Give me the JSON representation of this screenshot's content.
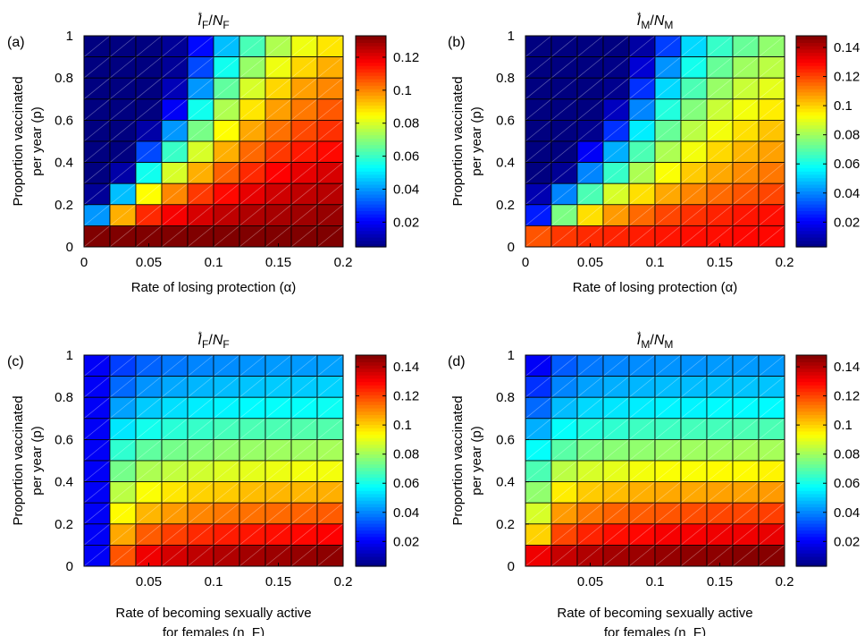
{
  "figure": {
    "panels": [
      {
        "id": "a",
        "letter": "(a)",
        "title_sym": "I",
        "title_sup": "*",
        "title_sub": "F",
        "title_den": "N",
        "title_den_sub": "F",
        "xlabel_lines": [
          "Rate of losing protection (α)"
        ],
        "ylabel_lines": [
          "Proportion vaccinated",
          "per year (p)"
        ],
        "xticks": [
          "0",
          "0.05",
          "0.1",
          "0.15",
          "0.2"
        ],
        "yticks": [
          "0",
          "0.2",
          "0.4",
          "0.6",
          "0.8",
          "1"
        ],
        "cticks": [
          "0.02",
          "0.04",
          "0.06",
          "0.08",
          "0.1",
          "0.12"
        ]
      },
      {
        "id": "b",
        "letter": "(b)",
        "title_sym": "I",
        "title_sup": "*",
        "title_sub": "M",
        "title_den": "N",
        "title_den_sub": "M",
        "xlabel_lines": [
          "Rate of losing protection (α)"
        ],
        "ylabel_lines": [
          "Proportion vaccinated",
          "per year (p)"
        ],
        "xticks": [
          "0",
          "0.05",
          "0.1",
          "0.15",
          "0.2"
        ],
        "yticks": [
          "0",
          "0.2",
          "0.4",
          "0.6",
          "0.8",
          "1"
        ],
        "cticks": [
          "0.02",
          "0.04",
          "0.06",
          "0.08",
          "0.1",
          "0.12",
          "0.14"
        ]
      },
      {
        "id": "c",
        "letter": "(c)",
        "title_sym": "I",
        "title_sup": "*",
        "title_sub": "F",
        "title_den": "N",
        "title_den_sub": "F",
        "xlabel_lines": [
          "Rate of becoming sexually active",
          "for females (η_F)"
        ],
        "ylabel_lines": [
          "Proportion vaccinated",
          "per year (p)"
        ],
        "xticks": [
          "0.05",
          "0.1",
          "0.15",
          "0.2"
        ],
        "yticks": [
          "0",
          "0.2",
          "0.4",
          "0.6",
          "0.8",
          "1"
        ],
        "cticks": [
          "0.02",
          "0.04",
          "0.06",
          "0.08",
          "0.1",
          "0.12",
          "0.14"
        ]
      },
      {
        "id": "d",
        "letter": "(d)",
        "title_sym": "I",
        "title_sup": "*",
        "title_sub": "M",
        "title_den": "N",
        "title_den_sub": "M",
        "xlabel_lines": [
          "Rate of becoming sexually active",
          "for females (η_F)"
        ],
        "ylabel_lines": [
          "Proportion vaccinated",
          "per year (p)"
        ],
        "xticks": [
          "0.05",
          "0.1",
          "0.15",
          "0.2"
        ],
        "yticks": [
          "0",
          "0.2",
          "0.4",
          "0.6",
          "0.8",
          "1"
        ],
        "cticks": [
          "0.02",
          "0.04",
          "0.06",
          "0.08",
          "0.1",
          "0.12",
          "0.14"
        ]
      }
    ]
  },
  "chart_data": [
    {
      "type": "heatmap",
      "title": "I*_F/N_F",
      "xlabel": "Rate of losing protection (α)",
      "ylabel": "Proportion vaccinated per year (p)",
      "x": [
        0,
        0.0222,
        0.0444,
        0.0667,
        0.0889,
        0.1111,
        0.1333,
        0.1556,
        0.1778,
        0.2
      ],
      "y": [
        0,
        0.1111,
        0.2222,
        0.3333,
        0.4444,
        0.5556,
        0.6667,
        0.7778,
        0.8889,
        1
      ],
      "xlim": [
        0,
        0.2
      ],
      "ylim": [
        0,
        1
      ],
      "clim": [
        0.005,
        0.133
      ],
      "colormap": "jet",
      "colorbar_ticks": [
        0.02,
        0.04,
        0.06,
        0.08,
        0.1,
        0.12
      ],
      "z_rows_top_to_bottom": [
        [
          0.005,
          0.005,
          0.005,
          0.008,
          0.022,
          0.045,
          0.062,
          0.075,
          0.083,
          0.088
        ],
        [
          0.005,
          0.005,
          0.005,
          0.008,
          0.03,
          0.055,
          0.072,
          0.083,
          0.09,
          0.095
        ],
        [
          0.005,
          0.005,
          0.005,
          0.012,
          0.04,
          0.065,
          0.08,
          0.09,
          0.097,
          0.1
        ],
        [
          0.005,
          0.005,
          0.005,
          0.02,
          0.055,
          0.075,
          0.088,
          0.097,
          0.102,
          0.106
        ],
        [
          0.005,
          0.005,
          0.01,
          0.04,
          0.068,
          0.085,
          0.096,
          0.103,
          0.108,
          0.111
        ],
        [
          0.005,
          0.005,
          0.03,
          0.06,
          0.08,
          0.095,
          0.104,
          0.11,
          0.114,
          0.116
        ],
        [
          0.005,
          0.01,
          0.055,
          0.08,
          0.095,
          0.105,
          0.112,
          0.117,
          0.12,
          0.122
        ],
        [
          0.008,
          0.045,
          0.085,
          0.1,
          0.11,
          0.116,
          0.12,
          0.123,
          0.125,
          0.126
        ],
        [
          0.04,
          0.095,
          0.112,
          0.118,
          0.122,
          0.125,
          0.127,
          0.128,
          0.129,
          0.13
        ],
        [
          0.133,
          0.133,
          0.133,
          0.133,
          0.133,
          0.133,
          0.133,
          0.133,
          0.133,
          0.133
        ]
      ]
    },
    {
      "type": "heatmap",
      "title": "I*_M/N_M",
      "xlabel": "Rate of losing protection (α)",
      "ylabel": "Proportion vaccinated per year (p)",
      "x": [
        0,
        0.0222,
        0.0444,
        0.0667,
        0.0889,
        0.1111,
        0.1333,
        0.1556,
        0.1778,
        0.2
      ],
      "y": [
        0,
        0.1111,
        0.2222,
        0.3333,
        0.4444,
        0.5556,
        0.6667,
        0.7778,
        0.8889,
        1
      ],
      "xlim": [
        0,
        0.2
      ],
      "ylim": [
        0,
        1
      ],
      "clim": [
        0.003,
        0.148
      ],
      "colormap": "jet",
      "colorbar_ticks": [
        0.02,
        0.04,
        0.06,
        0.08,
        0.1,
        0.12,
        0.14
      ],
      "z_rows_top_to_bottom": [
        [
          0.003,
          0.003,
          0.003,
          0.003,
          0.008,
          0.03,
          0.052,
          0.065,
          0.072,
          0.078
        ],
        [
          0.003,
          0.003,
          0.003,
          0.004,
          0.015,
          0.042,
          0.06,
          0.072,
          0.08,
          0.084
        ],
        [
          0.003,
          0.003,
          0.003,
          0.005,
          0.028,
          0.052,
          0.068,
          0.079,
          0.086,
          0.09
        ],
        [
          0.003,
          0.003,
          0.003,
          0.012,
          0.04,
          0.062,
          0.076,
          0.086,
          0.092,
          0.096
        ],
        [
          0.003,
          0.003,
          0.005,
          0.028,
          0.055,
          0.072,
          0.084,
          0.092,
          0.098,
          0.102
        ],
        [
          0.003,
          0.003,
          0.02,
          0.046,
          0.068,
          0.082,
          0.092,
          0.099,
          0.104,
          0.107
        ],
        [
          0.003,
          0.006,
          0.04,
          0.065,
          0.082,
          0.093,
          0.101,
          0.106,
          0.11,
          0.113
        ],
        [
          0.01,
          0.04,
          0.068,
          0.088,
          0.098,
          0.106,
          0.111,
          0.115,
          0.118,
          0.12
        ],
        [
          0.025,
          0.075,
          0.098,
          0.108,
          0.115,
          0.12,
          0.123,
          0.125,
          0.127,
          0.128
        ],
        [
          0.118,
          0.122,
          0.124,
          0.125,
          0.126,
          0.127,
          0.128,
          0.128,
          0.129,
          0.129
        ]
      ]
    },
    {
      "type": "heatmap",
      "title": "I*_F/N_F",
      "xlabel": "Rate of becoming sexually active for females (η_F)",
      "ylabel": "Proportion vaccinated per year (p)",
      "x": [
        0,
        0.0222,
        0.0444,
        0.0667,
        0.0889,
        0.1111,
        0.1333,
        0.1556,
        0.1778,
        0.2
      ],
      "y": [
        0,
        0.1111,
        0.2222,
        0.3333,
        0.4444,
        0.5556,
        0.6667,
        0.7778,
        0.8889,
        1
      ],
      "xlim": [
        0,
        0.2
      ],
      "ylim": [
        0,
        1
      ],
      "clim": [
        0.003,
        0.148
      ],
      "colormap": "jet",
      "colorbar_ticks": [
        0.02,
        0.04,
        0.06,
        0.08,
        0.1,
        0.12,
        0.14
      ],
      "z_rows_top_to_bottom": [
        [
          0.02,
          0.03,
          0.035,
          0.038,
          0.04,
          0.041,
          0.042,
          0.043,
          0.043,
          0.044
        ],
        [
          0.02,
          0.036,
          0.042,
          0.045,
          0.047,
          0.048,
          0.049,
          0.05,
          0.05,
          0.051
        ],
        [
          0.02,
          0.044,
          0.05,
          0.053,
          0.055,
          0.056,
          0.057,
          0.058,
          0.058,
          0.059
        ],
        [
          0.02,
          0.054,
          0.06,
          0.063,
          0.065,
          0.067,
          0.068,
          0.068,
          0.069,
          0.069
        ],
        [
          0.02,
          0.064,
          0.071,
          0.074,
          0.076,
          0.078,
          0.079,
          0.08,
          0.08,
          0.081
        ],
        [
          0.02,
          0.074,
          0.082,
          0.085,
          0.087,
          0.089,
          0.09,
          0.091,
          0.092,
          0.092
        ],
        [
          0.02,
          0.084,
          0.093,
          0.097,
          0.1,
          0.101,
          0.103,
          0.104,
          0.104,
          0.105
        ],
        [
          0.02,
          0.094,
          0.104,
          0.108,
          0.111,
          0.113,
          0.114,
          0.115,
          0.116,
          0.117
        ],
        [
          0.02,
          0.106,
          0.117,
          0.121,
          0.124,
          0.126,
          0.127,
          0.128,
          0.129,
          0.13
        ],
        [
          0.02,
          0.118,
          0.132,
          0.136,
          0.139,
          0.141,
          0.143,
          0.144,
          0.145,
          0.146
        ]
      ]
    },
    {
      "type": "heatmap",
      "title": "I*_M/N_M",
      "xlabel": "Rate of becoming sexually active for females (η_F)",
      "ylabel": "Proportion vaccinated per year (p)",
      "x": [
        0,
        0.0222,
        0.0444,
        0.0667,
        0.0889,
        0.1111,
        0.1333,
        0.1556,
        0.1778,
        0.2
      ],
      "y": [
        0,
        0.1111,
        0.2222,
        0.3333,
        0.4444,
        0.5556,
        0.6667,
        0.7778,
        0.8889,
        1
      ],
      "xlim": [
        0,
        0.2
      ],
      "ylim": [
        0,
        1
      ],
      "clim": [
        0.003,
        0.148
      ],
      "colormap": "jet",
      "colorbar_ticks": [
        0.02,
        0.04,
        0.06,
        0.08,
        0.1,
        0.12,
        0.14
      ],
      "z_rows_top_to_bottom": [
        [
          0.02,
          0.034,
          0.038,
          0.04,
          0.041,
          0.042,
          0.042,
          0.043,
          0.043,
          0.043
        ],
        [
          0.028,
          0.04,
          0.044,
          0.046,
          0.047,
          0.048,
          0.048,
          0.049,
          0.049,
          0.049
        ],
        [
          0.036,
          0.048,
          0.052,
          0.054,
          0.055,
          0.056,
          0.056,
          0.057,
          0.057,
          0.057
        ],
        [
          0.046,
          0.058,
          0.062,
          0.064,
          0.066,
          0.066,
          0.067,
          0.067,
          0.068,
          0.068
        ],
        [
          0.058,
          0.07,
          0.075,
          0.077,
          0.078,
          0.079,
          0.08,
          0.08,
          0.081,
          0.081
        ],
        [
          0.068,
          0.084,
          0.088,
          0.09,
          0.092,
          0.093,
          0.093,
          0.094,
          0.094,
          0.095
        ],
        [
          0.078,
          0.096,
          0.101,
          0.103,
          0.105,
          0.106,
          0.106,
          0.107,
          0.107,
          0.108
        ],
        [
          0.088,
          0.108,
          0.113,
          0.116,
          0.117,
          0.118,
          0.119,
          0.12,
          0.12,
          0.121
        ],
        [
          0.1,
          0.12,
          0.125,
          0.128,
          0.129,
          0.131,
          0.131,
          0.132,
          0.132,
          0.133
        ],
        [
          0.132,
          0.138,
          0.141,
          0.143,
          0.144,
          0.145,
          0.146,
          0.146,
          0.147,
          0.147
        ]
      ]
    }
  ]
}
